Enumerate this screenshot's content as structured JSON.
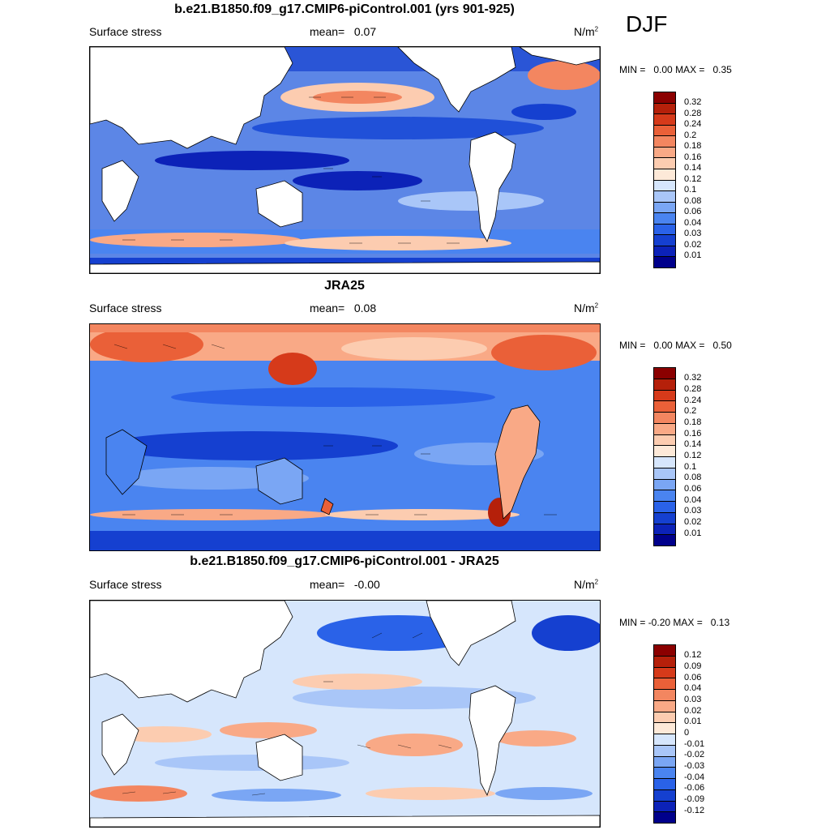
{
  "season": "DJF",
  "colors": {
    "cbar_pos": [
      "#00008b",
      "#0c22b8",
      "#1540d0",
      "#2a62e8",
      "#4a84f0",
      "#7aa6f4",
      "#a9c6f8",
      "#d6e6fc",
      "#fde9d8",
      "#fcccb0",
      "#f9a986",
      "#f38660",
      "#ea6038",
      "#d63a1a",
      "#b5200a",
      "#8b0000"
    ],
    "cbar_diff": [
      "#00008b",
      "#0c22b8",
      "#1540d0",
      "#2a62e8",
      "#4a84f0",
      "#7aa6f4",
      "#a9c6f8",
      "#d6e6fc",
      "#fde9d8",
      "#fcccb0",
      "#f9a986",
      "#f38660",
      "#ea6038",
      "#d63a1a",
      "#b5200a",
      "#8b0000"
    ]
  },
  "panels": [
    {
      "title": "b.e21.B1850.f09_g17.CMIP6-piControl.001 (yrs 901-925)",
      "left_label": "Surface stress",
      "mean_label": "mean=",
      "mean_value": "0.07",
      "units": "N/m",
      "units_sup": "2",
      "min_label": "MIN =",
      "min_value": "0.00",
      "max_label": "MAX =",
      "max_value": "0.35",
      "ticks": [
        "0.32",
        "0.28",
        "0.24",
        "0.2",
        "0.18",
        "0.16",
        "0.14",
        "0.12",
        "0.1",
        "0.08",
        "0.06",
        "0.04",
        "0.03",
        "0.02",
        "0.01"
      ]
    },
    {
      "title": "JRA25",
      "left_label": "Surface stress",
      "mean_label": "mean=",
      "mean_value": "0.08",
      "units": "N/m",
      "units_sup": "2",
      "min_label": "MIN =",
      "min_value": "0.00",
      "max_label": "MAX =",
      "max_value": "0.50",
      "ticks": [
        "0.32",
        "0.28",
        "0.24",
        "0.2",
        "0.18",
        "0.16",
        "0.14",
        "0.12",
        "0.1",
        "0.08",
        "0.06",
        "0.04",
        "0.03",
        "0.02",
        "0.01"
      ]
    },
    {
      "title": "b.e21.B1850.f09_g17.CMIP6-piControl.001 - JRA25",
      "left_label": "Surface stress",
      "mean_label": "mean=",
      "mean_value": "-0.00",
      "units": "N/m",
      "units_sup": "2",
      "min_label": "MIN =",
      "min_value": "-0.20",
      "max_label": "MAX =",
      "max_value": "0.13",
      "ticks": [
        "0.12",
        "0.09",
        "0.06",
        "0.04",
        "0.03",
        "0.02",
        "0.01",
        "0",
        "-0.01",
        "-0.02",
        "-0.03",
        "-0.04",
        "-0.06",
        "-0.09",
        "-0.12"
      ]
    }
  ]
}
